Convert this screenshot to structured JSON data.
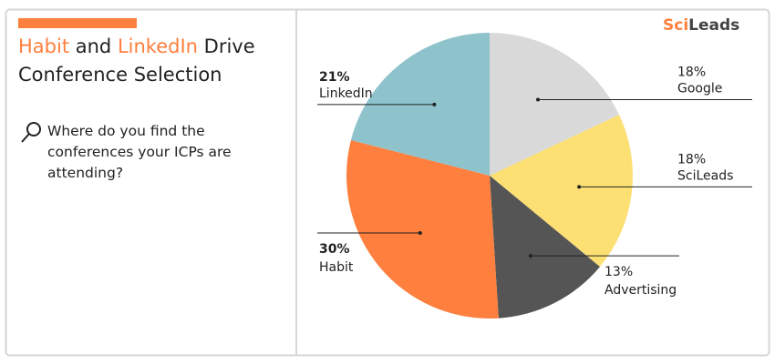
{
  "title": "Habit and LinkedIn Drive Conference Selection",
  "title_highlights": [
    "Habit",
    "LinkedIn"
  ],
  "question": "Where do you find the conferences your ICPs are attending?",
  "logo": [
    "Sci",
    "Leads"
  ],
  "chart_data": {
    "type": "pie",
    "categories": [
      "Google",
      "SciLeads",
      "Advertising",
      "Habit",
      "LinkedIn"
    ],
    "values": [
      18,
      18,
      13,
      30,
      21
    ],
    "value_labels": [
      "18%",
      "18%",
      "13%",
      "30%",
      "21%"
    ],
    "colors": [
      "#d9d9d9",
      "#fde074",
      "#555555",
      "#fe7f3e",
      "#8fc3cc"
    ]
  }
}
